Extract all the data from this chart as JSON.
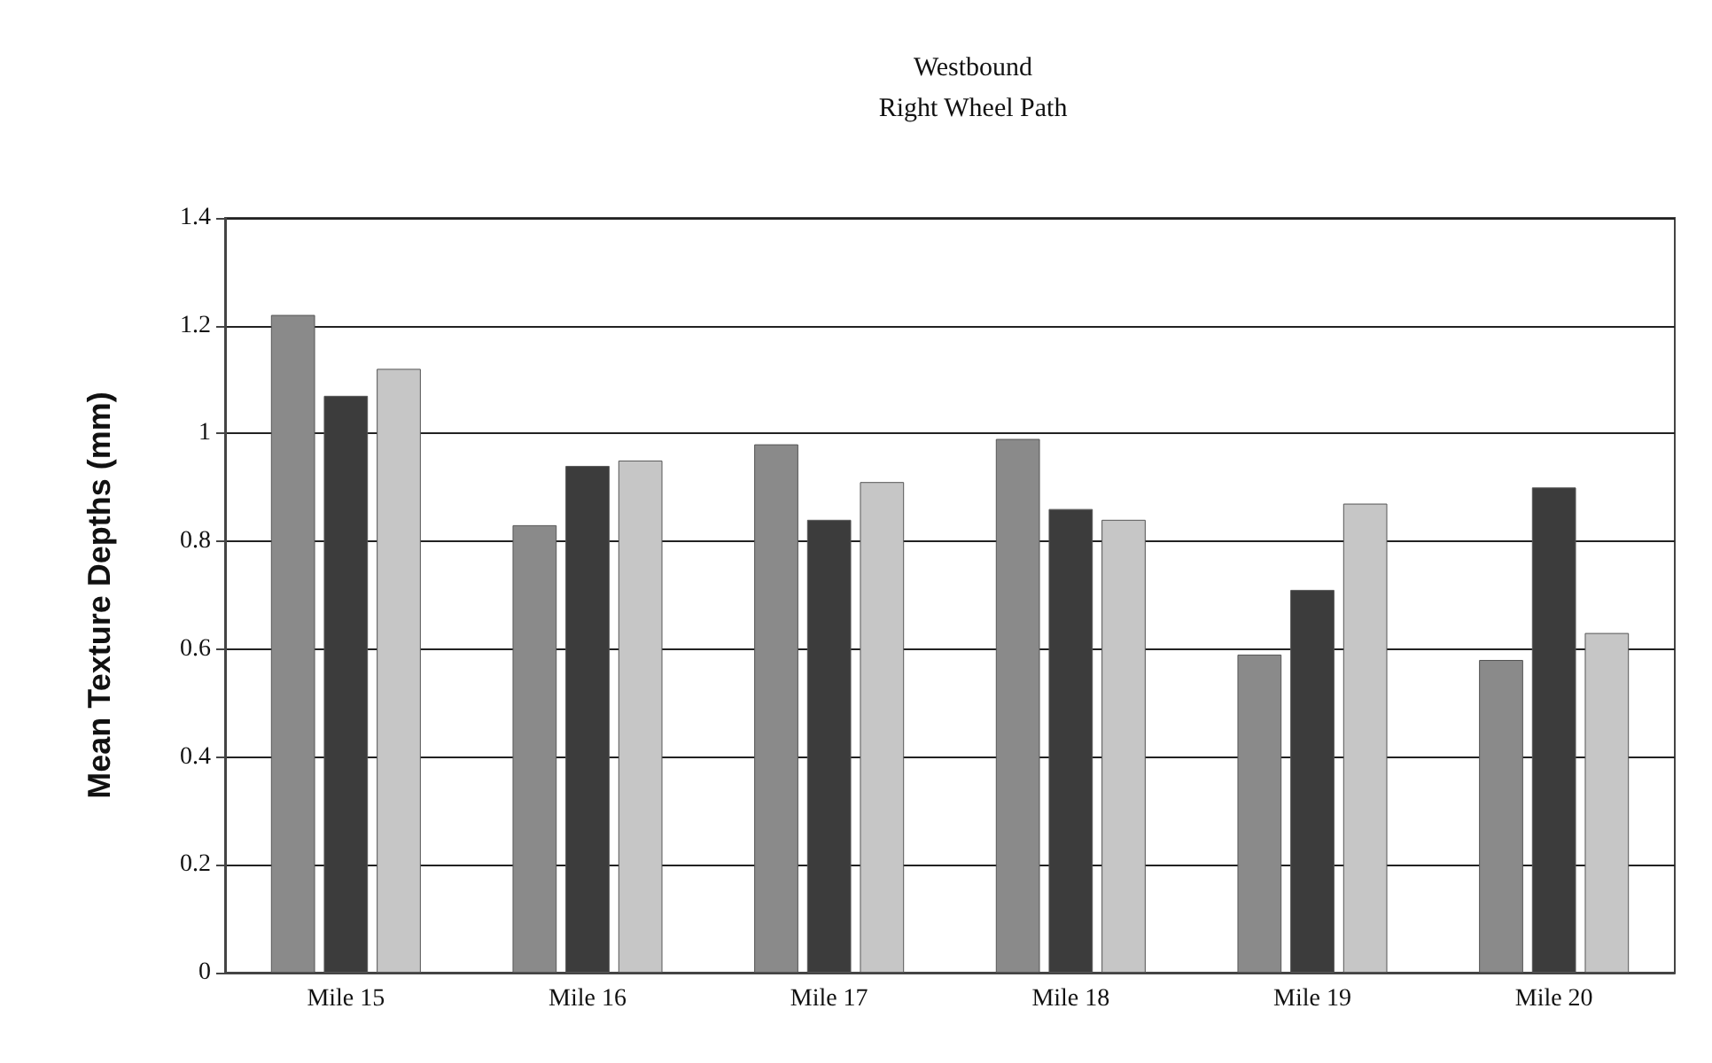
{
  "chart_data": {
    "type": "bar",
    "title": "Westbound",
    "subtitle": "Right Wheel Path",
    "ylabel": "Mean Texture Depths (mm)",
    "categories": [
      "Mile 15",
      "Mile 16",
      "Mile 17",
      "Mile 18",
      "Mile 19",
      "Mile 20"
    ],
    "series": [
      {
        "color": "#8a8a8a",
        "values": [
          1.22,
          0.83,
          0.98,
          0.99,
          0.59,
          0.58
        ]
      },
      {
        "color": "#3c3c3c",
        "values": [
          1.07,
          0.94,
          0.84,
          0.86,
          0.71,
          0.9
        ]
      },
      {
        "color": "#c6c6c6",
        "values": [
          1.12,
          0.95,
          0.91,
          0.84,
          0.87,
          0.63
        ]
      }
    ],
    "ylim": [
      0,
      1.4
    ],
    "yticks": [
      0,
      0.2,
      0.4,
      0.6,
      0.8,
      1,
      1.2,
      1.4
    ],
    "grid": "y"
  }
}
